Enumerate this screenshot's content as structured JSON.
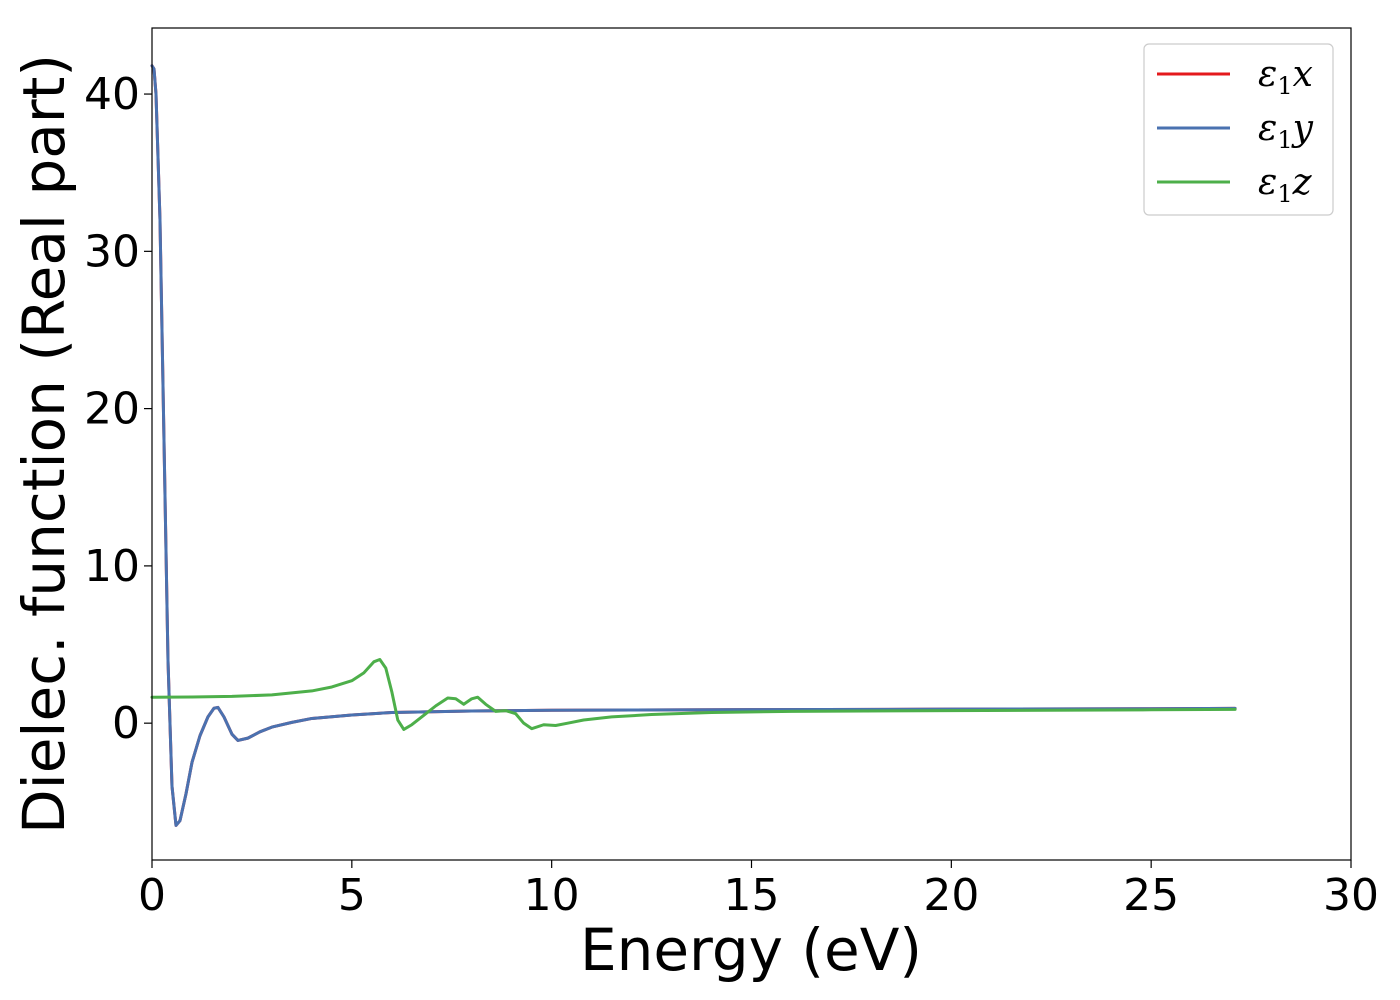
{
  "chart_data": {
    "type": "line",
    "xlabel": "Energy (eV)",
    "ylabel": "Dielec. function (Real part)",
    "xlim": [
      0,
      30
    ],
    "ylim": [
      -8.7,
      44.2
    ],
    "xticks": [
      0,
      5,
      10,
      15,
      20,
      25,
      30
    ],
    "yticks": [
      0,
      10,
      20,
      30,
      40
    ],
    "grid": false,
    "legend_position": "top-right",
    "series": [
      {
        "name": "ε₁x",
        "legend_base": "ε",
        "legend_sub": "1",
        "legend_var": "x",
        "color": "#e41a1c",
        "points": [
          [
            0.0,
            41.8
          ],
          [
            0.05,
            41.6
          ],
          [
            0.1,
            40.0
          ],
          [
            0.2,
            32.0
          ],
          [
            0.3,
            18.0
          ],
          [
            0.4,
            4.0
          ],
          [
            0.5,
            -4.0
          ],
          [
            0.6,
            -6.5
          ],
          [
            0.7,
            -6.2
          ],
          [
            0.85,
            -4.5
          ],
          [
            1.0,
            -2.5
          ],
          [
            1.2,
            -0.8
          ],
          [
            1.4,
            0.4
          ],
          [
            1.55,
            0.95
          ],
          [
            1.65,
            1.0
          ],
          [
            1.8,
            0.4
          ],
          [
            2.0,
            -0.7
          ],
          [
            2.15,
            -1.1
          ],
          [
            2.4,
            -0.95
          ],
          [
            2.7,
            -0.55
          ],
          [
            3.0,
            -0.25
          ],
          [
            3.5,
            0.05
          ],
          [
            4.0,
            0.3
          ],
          [
            5.0,
            0.52
          ],
          [
            6.0,
            0.68
          ],
          [
            7.0,
            0.73
          ],
          [
            8.0,
            0.77
          ],
          [
            9.0,
            0.8
          ],
          [
            10.0,
            0.82
          ],
          [
            12.0,
            0.84
          ],
          [
            15.0,
            0.86
          ],
          [
            20.0,
            0.89
          ],
          [
            25.0,
            0.92
          ],
          [
            27.1,
            0.94
          ]
        ]
      },
      {
        "name": "ε₁y",
        "legend_base": "ε",
        "legend_sub": "1",
        "legend_var": "y",
        "color": "#4a72b0",
        "points": [
          [
            0.0,
            41.8
          ],
          [
            0.05,
            41.6
          ],
          [
            0.1,
            40.0
          ],
          [
            0.2,
            32.0
          ],
          [
            0.3,
            18.0
          ],
          [
            0.4,
            4.0
          ],
          [
            0.5,
            -4.0
          ],
          [
            0.6,
            -6.5
          ],
          [
            0.7,
            -6.2
          ],
          [
            0.85,
            -4.5
          ],
          [
            1.0,
            -2.5
          ],
          [
            1.2,
            -0.8
          ],
          [
            1.4,
            0.4
          ],
          [
            1.55,
            0.95
          ],
          [
            1.65,
            1.0
          ],
          [
            1.8,
            0.4
          ],
          [
            2.0,
            -0.7
          ],
          [
            2.15,
            -1.1
          ],
          [
            2.4,
            -0.95
          ],
          [
            2.7,
            -0.55
          ],
          [
            3.0,
            -0.25
          ],
          [
            3.5,
            0.05
          ],
          [
            4.0,
            0.3
          ],
          [
            5.0,
            0.52
          ],
          [
            6.0,
            0.68
          ],
          [
            7.0,
            0.73
          ],
          [
            8.0,
            0.77
          ],
          [
            9.0,
            0.8
          ],
          [
            10.0,
            0.82
          ],
          [
            12.0,
            0.84
          ],
          [
            15.0,
            0.86
          ],
          [
            20.0,
            0.89
          ],
          [
            25.0,
            0.92
          ],
          [
            27.1,
            0.94
          ]
        ]
      },
      {
        "name": "ε₁z",
        "legend_base": "ε",
        "legend_sub": "1",
        "legend_var": "z",
        "color": "#4daf4a",
        "points": [
          [
            0.0,
            1.65
          ],
          [
            1.0,
            1.66
          ],
          [
            2.0,
            1.7
          ],
          [
            3.0,
            1.8
          ],
          [
            4.0,
            2.05
          ],
          [
            4.5,
            2.3
          ],
          [
            5.0,
            2.7
          ],
          [
            5.3,
            3.2
          ],
          [
            5.55,
            3.9
          ],
          [
            5.7,
            4.05
          ],
          [
            5.85,
            3.5
          ],
          [
            6.0,
            2.0
          ],
          [
            6.15,
            0.2
          ],
          [
            6.3,
            -0.4
          ],
          [
            6.5,
            -0.1
          ],
          [
            6.8,
            0.5
          ],
          [
            7.1,
            1.1
          ],
          [
            7.4,
            1.6
          ],
          [
            7.6,
            1.55
          ],
          [
            7.8,
            1.2
          ],
          [
            8.0,
            1.55
          ],
          [
            8.15,
            1.65
          ],
          [
            8.35,
            1.2
          ],
          [
            8.6,
            0.75
          ],
          [
            8.85,
            0.8
          ],
          [
            9.1,
            0.6
          ],
          [
            9.3,
            0.0
          ],
          [
            9.5,
            -0.35
          ],
          [
            9.8,
            -0.1
          ],
          [
            10.1,
            -0.15
          ],
          [
            10.4,
            0.0
          ],
          [
            10.8,
            0.2
          ],
          [
            11.5,
            0.4
          ],
          [
            12.5,
            0.55
          ],
          [
            14.0,
            0.68
          ],
          [
            16.0,
            0.75
          ],
          [
            20.0,
            0.8
          ],
          [
            25.0,
            0.85
          ],
          [
            27.1,
            0.88
          ]
        ]
      }
    ]
  }
}
